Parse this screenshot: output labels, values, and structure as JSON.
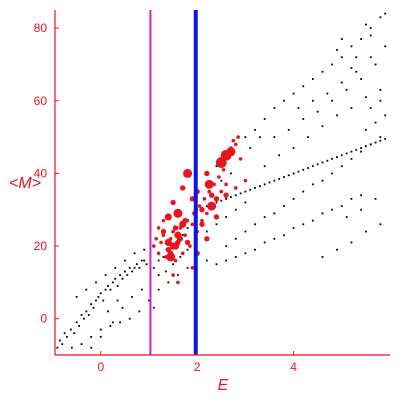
{
  "chart_data": {
    "type": "scatter",
    "title": "",
    "xlabel": "E",
    "ylabel": "<M>",
    "xlim": [
      -0.95,
      6.0
    ],
    "ylim": [
      -10,
      85
    ],
    "x_ticks": [
      0,
      2,
      4
    ],
    "y_ticks": [
      0,
      20,
      40,
      60,
      80
    ],
    "grid": false,
    "colors": {
      "axes": "#e8141e",
      "black_points": "#000000",
      "red_points": "#e8141e",
      "line_magenta": "#cc22cc",
      "line_blue": "#0a14e6"
    },
    "vertical_lines": [
      {
        "x": 1.03,
        "color": "#cc22cc"
      },
      {
        "x": 1.97,
        "color": "#0a14e6"
      }
    ],
    "series": [
      {
        "color": "#000000",
        "points": [
          [
            -0.9,
            -8
          ],
          [
            -0.85,
            -6
          ],
          [
            -0.8,
            -7
          ],
          [
            -0.75,
            -4
          ],
          [
            -0.7,
            -5
          ],
          [
            -0.62,
            -3
          ],
          [
            -0.55,
            -4
          ],
          [
            -0.5,
            -1
          ],
          [
            -0.45,
            -2
          ],
          [
            -0.4,
            1
          ],
          [
            -0.35,
            0
          ],
          [
            -0.3,
            2
          ],
          [
            -0.25,
            1
          ],
          [
            -0.2,
            4
          ],
          [
            -0.15,
            3
          ],
          [
            -0.1,
            5
          ],
          [
            -0.05,
            6
          ],
          [
            0.0,
            7
          ],
          [
            0.05,
            5
          ],
          [
            0.1,
            8
          ],
          [
            0.15,
            9
          ],
          [
            0.2,
            8
          ],
          [
            0.25,
            10
          ],
          [
            0.3,
            11
          ],
          [
            0.35,
            9
          ],
          [
            0.4,
            12
          ],
          [
            0.45,
            11
          ],
          [
            0.5,
            13
          ],
          [
            0.55,
            12
          ],
          [
            0.6,
            14
          ],
          [
            0.65,
            13
          ],
          [
            0.7,
            14
          ],
          [
            0.75,
            15
          ],
          [
            0.8,
            14
          ],
          [
            0.85,
            16
          ],
          [
            0.9,
            16
          ],
          [
            0.95,
            15
          ],
          [
            -0.6,
            -8
          ],
          [
            -0.4,
            -7
          ],
          [
            -0.2,
            -5
          ],
          [
            0.0,
            -3
          ],
          [
            0.2,
            -2
          ],
          [
            0.4,
            -1
          ],
          [
            0.6,
            0
          ],
          [
            0.8,
            2
          ],
          [
            -0.5,
            6
          ],
          [
            -0.3,
            8
          ],
          [
            -0.1,
            10
          ],
          [
            0.1,
            12
          ],
          [
            0.3,
            14
          ],
          [
            0.5,
            16
          ],
          [
            0.7,
            18
          ],
          [
            0.9,
            19
          ],
          [
            0.0,
            -5
          ],
          [
            -0.2,
            -8
          ],
          [
            0.25,
            -1
          ],
          [
            0.45,
            3
          ],
          [
            0.65,
            6
          ],
          [
            0.85,
            8
          ],
          [
            0.35,
            5
          ],
          [
            0.15,
            2
          ],
          [
            2.0,
            30
          ],
          [
            2.2,
            31
          ],
          [
            2.4,
            32
          ],
          [
            2.6,
            33
          ],
          [
            2.8,
            34
          ],
          [
            3.0,
            35
          ],
          [
            3.2,
            36
          ],
          [
            3.4,
            37
          ],
          [
            3.6,
            38
          ],
          [
            3.8,
            39
          ],
          [
            4.0,
            40
          ],
          [
            4.2,
            41
          ],
          [
            4.4,
            42
          ],
          [
            4.6,
            43
          ],
          [
            4.8,
            44
          ],
          [
            5.0,
            45
          ],
          [
            5.2,
            46
          ],
          [
            5.4,
            47
          ],
          [
            5.6,
            48
          ],
          [
            5.8,
            49
          ],
          [
            2.1,
            30.5
          ],
          [
            2.3,
            31.5
          ],
          [
            2.5,
            32.5
          ],
          [
            2.7,
            33.5
          ],
          [
            2.9,
            34.5
          ],
          [
            3.1,
            35.5
          ],
          [
            3.3,
            36.5
          ],
          [
            3.5,
            37.5
          ],
          [
            3.7,
            38.5
          ],
          [
            3.9,
            39.5
          ],
          [
            4.1,
            40.5
          ],
          [
            4.3,
            41.5
          ],
          [
            4.5,
            42.5
          ],
          [
            4.7,
            43.5
          ],
          [
            4.9,
            44.5
          ],
          [
            5.1,
            45.5
          ],
          [
            5.3,
            46.5
          ],
          [
            5.5,
            47.5
          ],
          [
            5.7,
            48.5
          ],
          [
            5.9,
            49.5
          ],
          [
            2.6,
            20
          ],
          [
            2.8,
            22
          ],
          [
            3.0,
            24
          ],
          [
            3.2,
            26
          ],
          [
            3.4,
            28
          ],
          [
            3.6,
            29
          ],
          [
            3.8,
            31
          ],
          [
            4.0,
            33
          ],
          [
            4.2,
            35
          ],
          [
            4.4,
            37
          ],
          [
            4.6,
            38
          ],
          [
            4.8,
            40
          ],
          [
            5.0,
            42
          ],
          [
            5.2,
            44
          ],
          [
            5.4,
            46
          ],
          [
            5.6,
            48
          ],
          [
            5.8,
            50
          ],
          [
            2.2,
            16
          ],
          [
            2.4,
            15
          ],
          [
            2.6,
            16
          ],
          [
            2.8,
            17
          ],
          [
            3.0,
            18
          ],
          [
            3.2,
            19
          ],
          [
            3.4,
            21
          ],
          [
            3.6,
            22
          ],
          [
            3.8,
            23
          ],
          [
            4.0,
            25
          ],
          [
            4.2,
            26
          ],
          [
            4.4,
            27
          ],
          [
            4.6,
            29
          ],
          [
            4.8,
            30
          ],
          [
            5.0,
            31
          ],
          [
            5.2,
            33
          ],
          [
            5.4,
            34
          ],
          [
            2.8,
            48
          ],
          [
            3.0,
            50
          ],
          [
            3.2,
            52
          ],
          [
            3.4,
            55
          ],
          [
            3.6,
            58
          ],
          [
            3.8,
            60
          ],
          [
            4.0,
            62
          ],
          [
            4.2,
            64
          ],
          [
            4.4,
            66
          ],
          [
            4.6,
            68
          ],
          [
            4.8,
            70
          ],
          [
            5.0,
            72
          ],
          [
            5.2,
            75
          ],
          [
            5.4,
            77
          ],
          [
            5.6,
            80
          ],
          [
            5.8,
            83
          ],
          [
            3.4,
            42
          ],
          [
            3.7,
            45
          ],
          [
            4.0,
            47
          ],
          [
            4.3,
            50
          ],
          [
            4.6,
            53
          ],
          [
            4.9,
            56
          ],
          [
            5.2,
            58
          ],
          [
            5.5,
            61
          ],
          [
            5.8,
            63
          ],
          [
            4.2,
            55
          ],
          [
            4.5,
            57
          ],
          [
            4.8,
            60
          ],
          [
            5.1,
            63
          ],
          [
            5.4,
            66
          ],
          [
            5.7,
            70
          ],
          [
            3.6,
            50
          ],
          [
            3.9,
            52
          ],
          [
            4.1,
            58
          ],
          [
            4.4,
            60
          ],
          [
            4.7,
            62
          ],
          [
            5.0,
            65
          ],
          [
            5.3,
            68
          ],
          [
            5.6,
            72
          ],
          [
            5.9,
            75
          ],
          [
            5.0,
            77
          ],
          [
            5.3,
            72
          ],
          [
            5.6,
            78
          ],
          [
            5.9,
            84
          ],
          [
            5.5,
            81
          ],
          [
            5.2,
            69
          ],
          [
            4.9,
            74
          ],
          [
            4.6,
            17
          ],
          [
            4.9,
            19
          ],
          [
            5.2,
            21
          ],
          [
            5.5,
            24
          ],
          [
            5.8,
            26
          ],
          [
            5.1,
            28
          ],
          [
            5.4,
            30
          ],
          [
            5.7,
            33
          ],
          [
            2.4,
            42
          ],
          [
            2.6,
            45
          ],
          [
            2.9,
            44
          ],
          [
            3.1,
            47
          ],
          [
            3.3,
            50
          ],
          [
            2.5,
            38
          ],
          [
            2.7,
            40
          ],
          [
            1.1,
            14
          ],
          [
            1.2,
            16
          ],
          [
            1.3,
            17
          ],
          [
            1.4,
            19
          ],
          [
            1.5,
            20
          ],
          [
            1.6,
            22
          ],
          [
            1.7,
            23
          ],
          [
            1.8,
            25
          ],
          [
            1.9,
            26
          ],
          [
            1.2,
            12
          ],
          [
            1.35,
            13
          ],
          [
            1.5,
            15
          ],
          [
            1.65,
            17
          ],
          [
            1.8,
            19
          ],
          [
            1.95,
            21
          ],
          [
            1.0,
            5
          ],
          [
            1.2,
            8
          ],
          [
            1.4,
            10
          ],
          [
            1.6,
            12
          ],
          [
            1.8,
            14
          ],
          [
            1.1,
            3
          ],
          [
            2.2,
            24
          ],
          [
            2.4,
            26
          ],
          [
            2.6,
            28
          ],
          [
            2.8,
            30
          ],
          [
            3.0,
            32
          ],
          [
            5.5,
            52
          ],
          [
            5.7,
            54
          ],
          [
            5.9,
            56
          ],
          [
            5.6,
            58
          ],
          [
            5.8,
            60
          ]
        ]
      },
      {
        "color": "#e8141e",
        "points": [
          [
            1.1,
            20,
            2
          ],
          [
            1.15,
            22,
            2
          ],
          [
            1.2,
            18,
            2
          ],
          [
            1.25,
            21,
            2
          ],
          [
            1.3,
            23,
            2
          ],
          [
            1.35,
            17,
            2
          ],
          [
            1.4,
            19,
            3
          ],
          [
            1.45,
            22,
            2
          ],
          [
            1.5,
            24,
            2
          ],
          [
            1.55,
            16,
            2
          ],
          [
            1.6,
            21,
            3
          ],
          [
            1.65,
            25,
            2
          ],
          [
            1.7,
            18,
            2
          ],
          [
            1.75,
            23,
            2
          ],
          [
            1.8,
            27,
            2
          ],
          [
            1.85,
            20,
            2
          ],
          [
            1.9,
            26,
            2
          ],
          [
            1.95,
            29,
            3
          ],
          [
            2.0,
            24,
            2
          ],
          [
            2.05,
            31,
            2
          ],
          [
            2.1,
            27,
            2
          ],
          [
            2.15,
            33,
            2
          ],
          [
            2.2,
            29,
            2
          ],
          [
            2.25,
            35,
            2
          ],
          [
            2.3,
            31,
            2
          ],
          [
            2.35,
            37,
            2
          ],
          [
            2.4,
            33,
            3
          ],
          [
            2.45,
            39,
            2
          ],
          [
            2.5,
            35,
            2
          ],
          [
            2.55,
            41,
            2
          ],
          [
            2.6,
            37,
            2
          ],
          [
            2.65,
            45,
            2
          ],
          [
            2.7,
            47,
            2
          ],
          [
            2.75,
            49,
            2
          ],
          [
            2.8,
            48,
            2
          ],
          [
            2.85,
            50,
            2
          ],
          [
            2.9,
            44,
            2
          ],
          [
            3.0,
            38,
            2
          ],
          [
            1.4,
            21,
            4
          ],
          [
            1.5,
            20,
            4
          ],
          [
            1.6,
            23,
            4
          ],
          [
            1.3,
            24,
            3
          ],
          [
            1.45,
            18,
            3
          ],
          [
            1.55,
            25,
            3
          ],
          [
            1.7,
            26,
            4
          ],
          [
            1.8,
            21,
            3
          ],
          [
            2.0,
            35,
            3
          ],
          [
            2.2,
            40,
            3
          ],
          [
            2.1,
            30,
            3
          ],
          [
            2.3,
            34,
            3
          ],
          [
            1.45,
            17,
            5
          ],
          [
            1.55,
            20,
            4
          ],
          [
            1.65,
            22,
            3
          ],
          [
            1.75,
            27,
            3
          ],
          [
            1.6,
            29,
            5
          ],
          [
            1.8,
            40,
            5
          ],
          [
            2.3,
            31,
            5
          ],
          [
            2.25,
            37,
            5
          ],
          [
            2.5,
            43,
            6
          ],
          [
            2.6,
            45,
            6
          ],
          [
            2.7,
            46,
            5
          ],
          [
            1.4,
            28,
            4
          ],
          [
            1.5,
            32,
            3
          ],
          [
            1.7,
            36,
            3
          ],
          [
            1.9,
            33,
            3
          ],
          [
            2.1,
            26,
            3
          ],
          [
            2.2,
            22,
            3
          ],
          [
            2.0,
            18,
            3
          ],
          [
            1.9,
            14,
            2
          ],
          [
            1.6,
            10,
            2
          ],
          [
            1.5,
            12,
            2
          ],
          [
            2.4,
            28,
            3
          ],
          [
            2.6,
            34,
            3
          ],
          [
            2.8,
            36,
            2
          ],
          [
            1.3,
            27,
            2
          ],
          [
            1.2,
            25,
            2
          ]
        ]
      }
    ]
  }
}
